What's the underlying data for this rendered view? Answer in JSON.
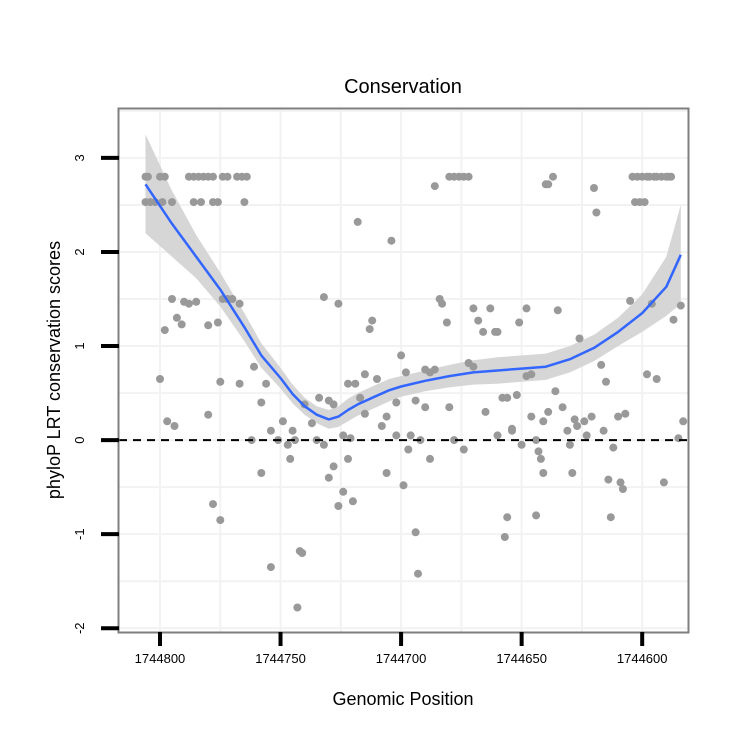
{
  "chart_data": {
    "type": "scatter",
    "title": "Conservation",
    "xlabel": "Genomic Position",
    "ylabel": "phyloP LRT conservation scores",
    "x_reversed": true,
    "xlim": [
      1744581,
      1744817
    ],
    "ylim": [
      -2.04,
      3.52
    ],
    "x_ticks": [
      1744800,
      1744750,
      1744700,
      1744650,
      1744600
    ],
    "x_tick_labels": [
      "1744800",
      "1744750",
      "1744700",
      "1744650",
      "1744600"
    ],
    "y_ticks": [
      -2,
      -1,
      0,
      1,
      2,
      3
    ],
    "y_tick_labels": [
      "-2",
      "-1",
      "0",
      "1",
      "2",
      "3"
    ],
    "reference_line": {
      "y": 0,
      "style": "dashed",
      "color": "#000000"
    },
    "colors": {
      "points": "#999999",
      "smooth": "#3366ff",
      "ribbon": "#d2d2d2",
      "panel_border": "#7f7f7f",
      "grid": "#f2f2f2"
    },
    "points": [
      [
        1744806,
        2.8
      ],
      [
        1744805,
        2.8
      ],
      [
        1744800,
        2.8
      ],
      [
        1744798,
        2.8
      ],
      [
        1744788,
        2.8
      ],
      [
        1744786,
        2.8
      ],
      [
        1744784,
        2.8
      ],
      [
        1744782,
        2.8
      ],
      [
        1744780,
        2.8
      ],
      [
        1744778,
        2.8
      ],
      [
        1744774,
        2.8
      ],
      [
        1744772,
        2.8
      ],
      [
        1744768,
        2.8
      ],
      [
        1744766,
        2.8
      ],
      [
        1744764,
        2.8
      ],
      [
        1744806,
        2.53
      ],
      [
        1744804,
        2.53
      ],
      [
        1744802,
        2.53
      ],
      [
        1744799,
        2.53
      ],
      [
        1744795,
        2.53
      ],
      [
        1744786,
        2.53
      ],
      [
        1744783,
        2.53
      ],
      [
        1744778,
        2.53
      ],
      [
        1744776,
        2.53
      ],
      [
        1744765,
        2.53
      ],
      [
        1744798,
        1.17
      ],
      [
        1744795,
        1.5
      ],
      [
        1744793,
        1.3
      ],
      [
        1744791,
        1.23
      ],
      [
        1744790,
        1.47
      ],
      [
        1744788,
        1.45
      ],
      [
        1744785,
        1.47
      ],
      [
        1744780,
        1.22
      ],
      [
        1744776,
        1.25
      ],
      [
        1744774,
        1.5
      ],
      [
        1744772,
        1.5
      ],
      [
        1744770,
        1.5
      ],
      [
        1744767,
        1.45
      ],
      [
        1744800,
        0.65
      ],
      [
        1744797,
        0.2
      ],
      [
        1744794,
        0.15
      ],
      [
        1744780,
        0.27
      ],
      [
        1744775,
        0.62
      ],
      [
        1744767,
        0.6
      ],
      [
        1744761,
        0.78
      ],
      [
        1744758,
        0.4
      ],
      [
        1744756,
        0.6
      ],
      [
        1744754,
        0.1
      ],
      [
        1744751,
        0
      ],
      [
        1744749,
        0.2
      ],
      [
        1744747,
        -0.05
      ],
      [
        1744745,
        0.1
      ],
      [
        1744744,
        0
      ],
      [
        1744778,
        -0.68
      ],
      [
        1744775,
        -0.85
      ],
      [
        1744762,
        0
      ],
      [
        1744758,
        -0.35
      ],
      [
        1744754,
        -1.35
      ],
      [
        1744746,
        -0.2
      ],
      [
        1744742,
        -1.18
      ],
      [
        1744741,
        -1.2
      ],
      [
        1744743,
        -1.78
      ],
      [
        1744740,
        0.38
      ],
      [
        1744737,
        0.18
      ],
      [
        1744735,
        0
      ],
      [
        1744734,
        0.45
      ],
      [
        1744732,
        1.52
      ],
      [
        1744730,
        0.42
      ],
      [
        1744728,
        0.38
      ],
      [
        1744726,
        1.45
      ],
      [
        1744724,
        0.05
      ],
      [
        1744722,
        0.6
      ],
      [
        1744721,
        0.02
      ],
      [
        1744719,
        0.6
      ],
      [
        1744717,
        0.45
      ],
      [
        1744715,
        0.7
      ],
      [
        1744732,
        -0.05
      ],
      [
        1744730,
        -0.4
      ],
      [
        1744728,
        -0.28
      ],
      [
        1744726,
        -0.7
      ],
      [
        1744724,
        -0.55
      ],
      [
        1744722,
        -0.2
      ],
      [
        1744720,
        -0.65
      ],
      [
        1744718,
        2.32
      ],
      [
        1744715,
        0.28
      ],
      [
        1744713,
        1.18
      ],
      [
        1744712,
        1.27
      ],
      [
        1744710,
        0.65
      ],
      [
        1744708,
        0.15
      ],
      [
        1744706,
        0.25
      ],
      [
        1744704,
        2.12
      ],
      [
        1744702,
        0.4
      ],
      [
        1744700,
        0.9
      ],
      [
        1744698,
        0.72
      ],
      [
        1744696,
        0.05
      ],
      [
        1744694,
        0.42
      ],
      [
        1744692,
        0
      ],
      [
        1744690,
        0.75
      ],
      [
        1744688,
        -0.2
      ],
      [
        1744686,
        2.7
      ],
      [
        1744684,
        1.5
      ],
      [
        1744683,
        1.45
      ],
      [
        1744681,
        1.25
      ],
      [
        1744680,
        2.8
      ],
      [
        1744678,
        2.8
      ],
      [
        1744676,
        2.8
      ],
      [
        1744674,
        2.8
      ],
      [
        1744672,
        2.8
      ],
      [
        1744670,
        1.4
      ],
      [
        1744706,
        -0.35
      ],
      [
        1744702,
        0.05
      ],
      [
        1744699,
        -0.48
      ],
      [
        1744697,
        -0.1
      ],
      [
        1744694,
        -0.98
      ],
      [
        1744693,
        -1.42
      ],
      [
        1744690,
        0.35
      ],
      [
        1744688,
        0.72
      ],
      [
        1744686,
        0.75
      ],
      [
        1744680,
        0.35
      ],
      [
        1744678,
        0
      ],
      [
        1744674,
        -0.1
      ],
      [
        1744672,
        0.82
      ],
      [
        1744670,
        0.78
      ],
      [
        1744668,
        1.27
      ],
      [
        1744666,
        1.15
      ],
      [
        1744665,
        0.3
      ],
      [
        1744663,
        1.4
      ],
      [
        1744661,
        1.15
      ],
      [
        1744660,
        1.15
      ],
      [
        1744658,
        0.45
      ],
      [
        1744657,
        -1.03
      ],
      [
        1744656,
        -0.82
      ],
      [
        1744654,
        0.1
      ],
      [
        1744652,
        0.48
      ],
      [
        1744651,
        1.25
      ],
      [
        1744648,
        1.4
      ],
      [
        1744646,
        0.7
      ],
      [
        1744644,
        0
      ],
      [
        1744643,
        -0.12
      ],
      [
        1744641,
        0.2
      ],
      [
        1744639,
        0.3
      ],
      [
        1744660,
        0.05
      ],
      [
        1744656,
        0.45
      ],
      [
        1744654,
        0.12
      ],
      [
        1744650,
        -0.05
      ],
      [
        1744648,
        0.68
      ],
      [
        1744646,
        0.25
      ],
      [
        1744644,
        -0.8
      ],
      [
        1744642,
        -0.2
      ],
      [
        1744641,
        -0.35
      ],
      [
        1744640,
        2.72
      ],
      [
        1744639,
        2.72
      ],
      [
        1744637,
        2.8
      ],
      [
        1744636,
        0.52
      ],
      [
        1744635,
        1.38
      ],
      [
        1744633,
        0.35
      ],
      [
        1744631,
        0.1
      ],
      [
        1744630,
        -0.05
      ],
      [
        1744629,
        -0.35
      ],
      [
        1744628,
        0.22
      ],
      [
        1744627,
        0.15
      ],
      [
        1744626,
        1.08
      ],
      [
        1744624,
        0.2
      ],
      [
        1744623,
        0.05
      ],
      [
        1744621,
        0.25
      ],
      [
        1744620,
        2.68
      ],
      [
        1744619,
        2.42
      ],
      [
        1744617,
        0.8
      ],
      [
        1744616,
        0.1
      ],
      [
        1744615,
        0.62
      ],
      [
        1744614,
        -0.42
      ],
      [
        1744613,
        -0.82
      ],
      [
        1744612,
        -0.08
      ],
      [
        1744610,
        0.25
      ],
      [
        1744609,
        -0.45
      ],
      [
        1744608,
        -0.52
      ],
      [
        1744607,
        0.28
      ],
      [
        1744605,
        1.48
      ],
      [
        1744604,
        2.8
      ],
      [
        1744602,
        2.8
      ],
      [
        1744600,
        2.8
      ],
      [
        1744598,
        2.8
      ],
      [
        1744597,
        2.8
      ],
      [
        1744595,
        2.8
      ],
      [
        1744594,
        2.8
      ],
      [
        1744592,
        2.8
      ],
      [
        1744590,
        2.8
      ],
      [
        1744588,
        2.8
      ],
      [
        1744603,
        2.53
      ],
      [
        1744601,
        2.53
      ],
      [
        1744599,
        2.53
      ],
      [
        1744598,
        0.7
      ],
      [
        1744596,
        1.45
      ],
      [
        1744594,
        0.65
      ],
      [
        1744591,
        -0.45
      ],
      [
        1744589,
        2.8
      ],
      [
        1744587,
        1.28
      ],
      [
        1744585,
        0.02
      ],
      [
        1744584,
        1.43
      ],
      [
        1744583,
        0.2
      ]
    ],
    "smooth": {
      "method": "loess",
      "x": [
        1744806,
        1744795,
        1744785,
        1744775,
        1744765,
        1744758,
        1744750,
        1744745,
        1744740,
        1744735,
        1744730,
        1744726,
        1744722,
        1744718,
        1744712,
        1744705,
        1744700,
        1744690,
        1744680,
        1744670,
        1744660,
        1744650,
        1744640,
        1744630,
        1744620,
        1744610,
        1744600,
        1744590,
        1744584
      ],
      "y": [
        2.72,
        2.3,
        1.95,
        1.6,
        1.2,
        0.9,
        0.66,
        0.49,
        0.36,
        0.27,
        0.22,
        0.25,
        0.32,
        0.38,
        0.45,
        0.53,
        0.57,
        0.63,
        0.68,
        0.72,
        0.74,
        0.76,
        0.78,
        0.86,
        0.98,
        1.15,
        1.35,
        1.63,
        1.97
      ],
      "se_lower": [
        2.2,
        1.95,
        1.72,
        1.42,
        1.05,
        0.77,
        0.55,
        0.39,
        0.27,
        0.18,
        0.12,
        0.14,
        0.2,
        0.26,
        0.33,
        0.41,
        0.46,
        0.52,
        0.56,
        0.59,
        0.6,
        0.62,
        0.64,
        0.72,
        0.84,
        1.0,
        1.15,
        1.32,
        1.45
      ],
      "se_upper": [
        3.25,
        2.65,
        2.18,
        1.78,
        1.35,
        1.03,
        0.77,
        0.59,
        0.45,
        0.36,
        0.32,
        0.36,
        0.44,
        0.5,
        0.57,
        0.65,
        0.68,
        0.74,
        0.8,
        0.85,
        0.88,
        0.9,
        0.92,
        1.0,
        1.12,
        1.3,
        1.55,
        1.95,
        2.5
      ]
    }
  }
}
